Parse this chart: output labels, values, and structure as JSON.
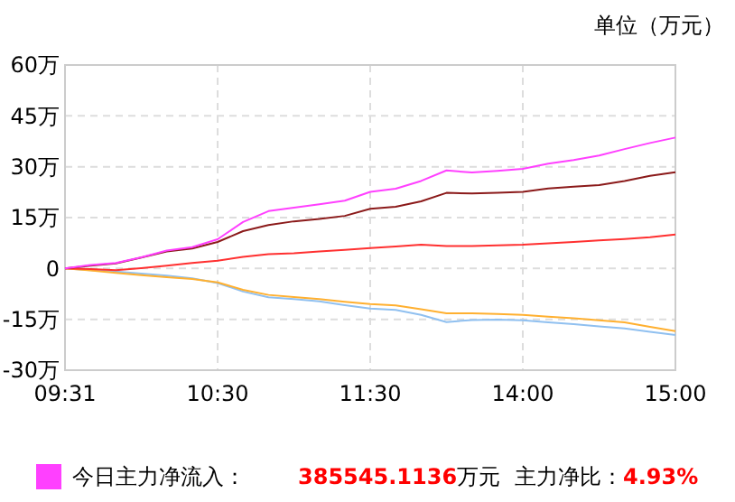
{
  "chart_data": {
    "type": "line",
    "ylabel": "单位（万元）",
    "categories": [
      "09:31",
      null,
      null,
      null,
      null,
      null,
      "10:30",
      null,
      null,
      null,
      null,
      null,
      "11:30",
      null,
      null,
      null,
      null,
      null,
      "14:00",
      null,
      null,
      null,
      null,
      null,
      "15:00"
    ],
    "ylim": [
      -30,
      60
    ],
    "yticks": [
      {
        "value": -30,
        "label": "-30万"
      },
      {
        "value": -15,
        "label": "-15万"
      },
      0,
      {
        "value": 15,
        "label": "15万"
      },
      {
        "value": 30,
        "label": "30万"
      },
      {
        "value": 45,
        "label": "45万"
      },
      {
        "value": 60,
        "label": "60万"
      }
    ],
    "grid": true,
    "legend": "bottom",
    "marker": "none",
    "line_style": "solid",
    "series": [
      {
        "name": "今日主力净流入：",
        "color": "#ff40ff",
        "values": [
          0,
          1,
          1.6,
          3.3,
          5.3,
          6.3,
          8.6,
          13.7,
          16.9,
          17.9,
          18.9,
          20,
          22.6,
          23.5,
          25.8,
          28.9,
          28.3,
          28.8,
          29.4,
          30.9,
          32,
          33.3,
          35.2,
          37,
          38.6
        ]
      },
      {
        "color": "#8b1a1a",
        "values": [
          0,
          0.8,
          1.5,
          3.2,
          5,
          5.9,
          7.8,
          11,
          12.8,
          13.9,
          14.6,
          15.5,
          17.6,
          18.2,
          19.8,
          22.3,
          22.1,
          22.3,
          22.6,
          23.6,
          24.1,
          24.6,
          25.8,
          27.3,
          28.4
        ]
      },
      {
        "color": "#ff3030",
        "values": [
          0,
          -0.2,
          -0.5,
          0.1,
          0.8,
          1.6,
          2.3,
          3.4,
          4.2,
          4.5,
          5,
          5.5,
          6,
          6.5,
          7,
          6.6,
          6.6,
          6.8,
          7,
          7.4,
          7.8,
          8.3,
          8.7,
          9.2,
          10
        ]
      },
      {
        "color": "#ffb030",
        "values": [
          0,
          -0.6,
          -1.3,
          -2,
          -2.6,
          -3.1,
          -4.1,
          -6.3,
          -7.8,
          -8.4,
          -9,
          -9.8,
          -10.5,
          -10.9,
          -12,
          -13.2,
          -13.2,
          -13.4,
          -13.7,
          -14.2,
          -14.7,
          -15.3,
          -15.9,
          -17.2,
          -18.5
        ]
      },
      {
        "color": "#90c0f0",
        "values": [
          0,
          -0.5,
          -0.9,
          -1.5,
          -2.1,
          -2.9,
          -4.3,
          -6.8,
          -8.5,
          -9,
          -9.7,
          -10.8,
          -11.8,
          -12.2,
          -13.7,
          -15.8,
          -15.2,
          -15.1,
          -15.3,
          -15.9,
          -16.4,
          -17.1,
          -17.7,
          -18.7,
          -19.6
        ]
      }
    ],
    "annotations": [
      "385545.1136万元",
      "主力净比：4.93%"
    ]
  }
}
